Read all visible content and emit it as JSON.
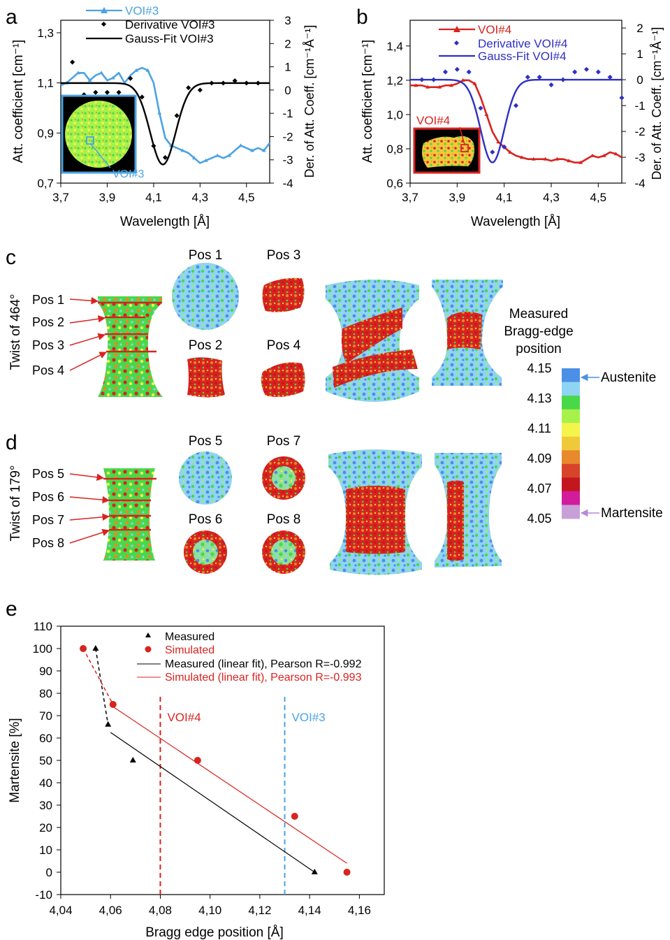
{
  "colors": {
    "voi3_blue": "#4ba3e3",
    "voi4_red": "#d8231f",
    "deriv4_blue": "#2e2fc4",
    "fit_black": "#000000",
    "measured_black": "#000000",
    "simulated_red": "#d8231f"
  },
  "panel_labels": {
    "a": "a",
    "b": "b",
    "c": "c",
    "d": "d",
    "e": "e"
  },
  "panel_c": {
    "twist_label": "Twist of 464°",
    "pos_labels": [
      "Pos 1",
      "Pos 2",
      "Pos 3",
      "Pos 4"
    ],
    "slice_titles": [
      "Pos 1",
      "Pos 3",
      "Pos 2",
      "Pos 4"
    ]
  },
  "panel_d": {
    "twist_label": "Twist of 179°",
    "pos_labels": [
      "Pos 5",
      "Pos 6",
      "Pos 7",
      "Pos 8"
    ],
    "slice_titles": [
      "Pos 5",
      "Pos 7",
      "Pos 6",
      "Pos 8"
    ]
  },
  "colorbar": {
    "title_lines": [
      "Measured",
      "Bragg-edge",
      "position"
    ],
    "ticks": [
      "4.15",
      "4.13",
      "4.11",
      "4.09",
      "4.07",
      "4.05"
    ],
    "colors": [
      "#4c8fe6",
      "#8fd4f2",
      "#49d84a",
      "#a6f24a",
      "#f4f54a",
      "#f0c93a",
      "#e7892c",
      "#d8442a",
      "#c4161f",
      "#d21c9c",
      "#c8a0d8"
    ],
    "austenite_label": "Austenite",
    "martensite_label": "Martensite",
    "austenite_arrow_color": "#4c8fe6",
    "martensite_arrow_color": "#b48ad8"
  },
  "voi_labels": {
    "voi3": "VOI#3",
    "voi4": "VOI#4"
  },
  "chart_data": [
    {
      "id": "a",
      "type": "line",
      "xlabel": "Wavelength [Å]",
      "ylabel": "Att. coefficient [cm⁻¹]",
      "y2label": "Der. of Att. Coeff. [cm⁻¹Å⁻¹]",
      "xlim": [
        3.7,
        4.6
      ],
      "ylim": [
        0.7,
        1.35
      ],
      "y2lim": [
        -4,
        3
      ],
      "xticks": [
        "3,7",
        "3,9",
        "4,1",
        "4,3",
        "4,5"
      ],
      "xtick_values": [
        3.7,
        3.9,
        4.1,
        4.3,
        4.5
      ],
      "yticks": [
        "0,7",
        "0,9",
        "1,1",
        "1,3"
      ],
      "ytick_values": [
        0.7,
        0.9,
        1.1,
        1.3
      ],
      "y2ticks": [
        "3",
        "2",
        "1",
        "0",
        "-1",
        "-2",
        "-3",
        "-4"
      ],
      "y2tick_values": [
        3,
        2,
        1,
        0,
        -1,
        -2,
        -3,
        -4
      ],
      "legend_position": "top",
      "series": [
        {
          "name": "VOI#3",
          "style": "line-markers",
          "color": "#4ba3e3",
          "axis": "left",
          "x": [
            3.7,
            3.725,
            3.75,
            3.775,
            3.8,
            3.825,
            3.85,
            3.875,
            3.9,
            3.925,
            3.95,
            3.975,
            4.0,
            4.025,
            4.05,
            4.075,
            4.1,
            4.125,
            4.15,
            4.175,
            4.2,
            4.225,
            4.25,
            4.275,
            4.3,
            4.325,
            4.35,
            4.375,
            4.4,
            4.425,
            4.45,
            4.475,
            4.5,
            4.525,
            4.55,
            4.575,
            4.6
          ],
          "y": [
            1.09,
            1.1,
            1.12,
            1.14,
            1.14,
            1.11,
            1.13,
            1.14,
            1.11,
            1.12,
            1.14,
            1.1,
            1.13,
            1.15,
            1.16,
            1.15,
            1.1,
            0.98,
            0.88,
            0.85,
            0.84,
            0.83,
            0.82,
            0.8,
            0.78,
            0.79,
            0.8,
            0.81,
            0.8,
            0.81,
            0.83,
            0.85,
            0.84,
            0.83,
            0.84,
            0.83,
            0.86
          ]
        },
        {
          "name": "Derivative VOI#3",
          "style": "markers",
          "color": "#000000",
          "axis": "right",
          "x": [
            3.75,
            3.8,
            3.85,
            3.9,
            3.95,
            4.0,
            4.05,
            4.1,
            4.15,
            4.2,
            4.25,
            4.3,
            4.35,
            4.4,
            4.45,
            4.5,
            4.55
          ],
          "y": [
            1.2,
            -0.2,
            -0.1,
            -0.1,
            -0.1,
            0.5,
            -0.3,
            -2.4,
            -2.9,
            -1.1,
            0.1,
            0.0,
            0.3,
            0.3,
            0.4,
            0.3,
            0.3
          ]
        },
        {
          "name": "Gauss-Fit VOI#3",
          "style": "line",
          "color": "#000000",
          "axis": "right",
          "baseline": 0.3,
          "amplitude": -3.5,
          "center": 4.14,
          "sigma": 0.055
        }
      ],
      "inset_label": "VOI#3"
    },
    {
      "id": "b",
      "type": "line",
      "xlabel": "Wavelength [Å]",
      "ylabel": "Att. coefficient [cm⁻¹]",
      "y2label": "Der. of Att. Coeff. [cm⁻¹Å⁻¹]",
      "xlim": [
        3.7,
        4.6
      ],
      "ylim": [
        0.6,
        1.55
      ],
      "y2lim": [
        -4,
        2.3
      ],
      "xticks": [
        "3,7",
        "3,9",
        "4,1",
        "4,3",
        "4,5"
      ],
      "xtick_values": [
        3.7,
        3.9,
        4.1,
        4.3,
        4.5
      ],
      "yticks": [
        "0,6",
        "0,8",
        "1,0",
        "1,2",
        "1,4"
      ],
      "ytick_values": [
        0.6,
        0.8,
        1.0,
        1.2,
        1.4
      ],
      "y2ticks": [
        "2",
        "1",
        "0",
        "-1",
        "-2",
        "-3",
        "-4"
      ],
      "y2tick_values": [
        2,
        1,
        0,
        -1,
        -2,
        -3,
        -4
      ],
      "legend_position": "top",
      "series": [
        {
          "name": "VOI#4",
          "style": "line-markers",
          "color": "#d8231f",
          "axis": "left",
          "x": [
            3.7,
            3.725,
            3.75,
            3.775,
            3.8,
            3.825,
            3.85,
            3.875,
            3.9,
            3.925,
            3.95,
            3.975,
            4.0,
            4.025,
            4.05,
            4.075,
            4.1,
            4.125,
            4.15,
            4.175,
            4.2,
            4.225,
            4.25,
            4.275,
            4.3,
            4.325,
            4.35,
            4.375,
            4.4,
            4.425,
            4.45,
            4.475,
            4.5,
            4.525,
            4.55,
            4.575,
            4.6
          ],
          "y": [
            1.17,
            1.17,
            1.17,
            1.16,
            1.16,
            1.16,
            1.17,
            1.17,
            1.18,
            1.2,
            1.2,
            1.18,
            1.1,
            1.0,
            0.9,
            0.84,
            0.81,
            0.78,
            0.76,
            0.75,
            0.74,
            0.74,
            0.74,
            0.74,
            0.73,
            0.74,
            0.74,
            0.73,
            0.72,
            0.72,
            0.74,
            0.76,
            0.75,
            0.76,
            0.78,
            0.77,
            0.75
          ]
        },
        {
          "name": "Derivative VOI#4",
          "style": "markers",
          "color": "#2e2fc4",
          "axis": "right",
          "x": [
            3.75,
            3.8,
            3.85,
            3.9,
            3.95,
            4.0,
            4.05,
            4.1,
            4.15,
            4.2,
            4.25,
            4.3,
            4.35,
            4.4,
            4.45,
            4.5,
            4.55,
            4.6
          ],
          "y": [
            0.0,
            0.0,
            0.3,
            0.4,
            0.3,
            -1.1,
            -2.8,
            -2.6,
            -1.0,
            0.1,
            0.1,
            -0.2,
            0.0,
            0.3,
            0.4,
            0.3,
            0.1,
            -0.7
          ]
        },
        {
          "name": "Gauss-Fit VOI#4",
          "style": "line",
          "color": "#2e2fc4",
          "axis": "right",
          "baseline": 0.0,
          "amplitude": -3.2,
          "center": 4.05,
          "sigma": 0.05
        }
      ],
      "inset_label": "VOI#4"
    },
    {
      "id": "e",
      "type": "scatter",
      "xlabel": "Bragg edge position [Å]",
      "ylabel": "Martensite [%]",
      "xlim": [
        4.04,
        4.17
      ],
      "ylim": [
        -10,
        110
      ],
      "xticks": [
        "4,04",
        "4,06",
        "4,08",
        "4,10",
        "4,12",
        "4,14",
        "4,16"
      ],
      "xtick_values": [
        4.04,
        4.06,
        4.08,
        4.1,
        4.12,
        4.14,
        4.16
      ],
      "yticks": [
        "-10",
        "0",
        "10",
        "20",
        "30",
        "40",
        "50",
        "60",
        "70",
        "80",
        "90",
        "100",
        "110"
      ],
      "ytick_values": [
        -10,
        0,
        10,
        20,
        30,
        40,
        50,
        60,
        70,
        80,
        90,
        100,
        110
      ],
      "legend_position": "top",
      "series": [
        {
          "name": "Measured",
          "marker": "triangle",
          "color": "#000000",
          "x": [
            4.054,
            4.059,
            4.069,
            4.142
          ],
          "y": [
            100,
            66,
            50,
            0
          ]
        },
        {
          "name": "Simulated",
          "marker": "circle",
          "color": "#d8231f",
          "x": [
            4.049,
            4.061,
            4.095,
            4.134,
            4.155
          ],
          "y": [
            100,
            75,
            50,
            25,
            0
          ]
        }
      ],
      "fits": [
        {
          "name": "Measured (linear fit), Pearson R=-0.992",
          "color": "#000000",
          "x": [
            4.06,
            4.142
          ],
          "y": [
            62.5,
            0
          ]
        },
        {
          "name": "Simulated (linear fit), Pearson R=-0.993",
          "color": "#d8231f",
          "x": [
            4.061,
            4.155
          ],
          "y": [
            74,
            4
          ]
        }
      ],
      "dashed_connectors": [
        {
          "color": "#000000",
          "x": [
            4.054,
            4.059
          ],
          "y": [
            100,
            66
          ]
        },
        {
          "color": "#d8231f",
          "x": [
            4.049,
            4.061
          ],
          "y": [
            100,
            75
          ]
        }
      ],
      "vlines": [
        {
          "label": "VOI#4",
          "x": 4.08,
          "color": "#d8231f"
        },
        {
          "label": "VOI#3",
          "x": 4.13,
          "color": "#4ba3e3"
        }
      ]
    }
  ]
}
